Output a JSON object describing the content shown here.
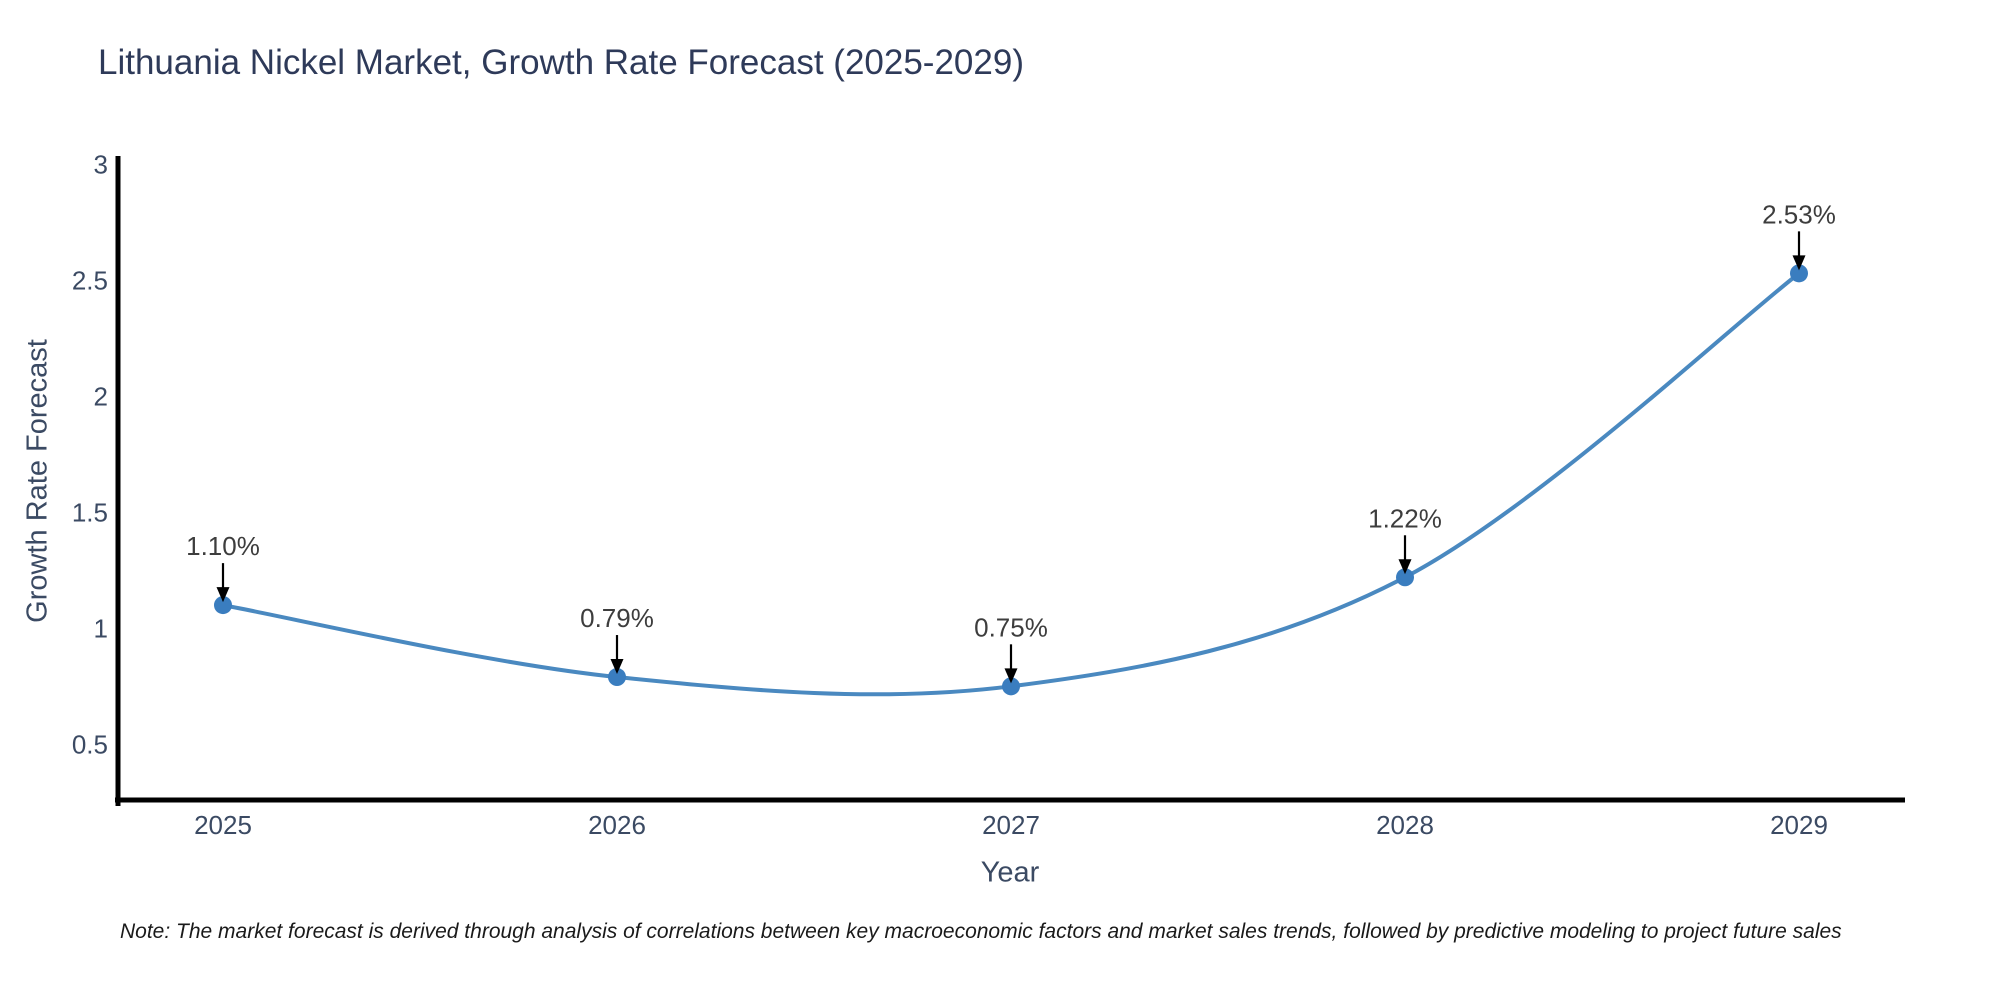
{
  "title": "Lithuania Nickel Market, Growth Rate Forecast (2025-2029)",
  "note": "Note: The market forecast is derived through analysis of correlations between key macroeconomic factors and market sales trends, followed by predictive modeling to project future sales",
  "chart_data": {
    "type": "line",
    "title": "Lithuania Nickel Market, Growth Rate Forecast (2025-2029)",
    "xlabel": "Year",
    "ylabel": "Growth Rate Forecast",
    "categories": [
      "2025",
      "2026",
      "2027",
      "2028",
      "2029"
    ],
    "x": [
      2025,
      2026,
      2027,
      2028,
      2029
    ],
    "series": [
      {
        "name": "Growth Rate Forecast",
        "values": [
          1.1,
          0.79,
          0.75,
          1.22,
          2.53
        ]
      }
    ],
    "point_labels": [
      "1.10%",
      "0.79%",
      "0.75%",
      "1.22%",
      "2.53%"
    ],
    "ytick_values": [
      0.5,
      1,
      1.5,
      2,
      2.5,
      3
    ],
    "ytick_labels": [
      "0.5",
      "1",
      "1.5",
      "2",
      "2.5",
      "3"
    ],
    "ylim": [
      0.26,
      3.05
    ],
    "xlim": [
      2024.73,
      2029.27
    ],
    "grid": false,
    "legend": "none",
    "colors": {
      "line": "#4a89c0",
      "marker": "#3a7dbf",
      "annotation_text": "#3d3d3d",
      "annotation_arrow": "#000000",
      "axis_line": "#000000",
      "tick_label": "#3b4a63",
      "title": "#2e3a59"
    }
  }
}
